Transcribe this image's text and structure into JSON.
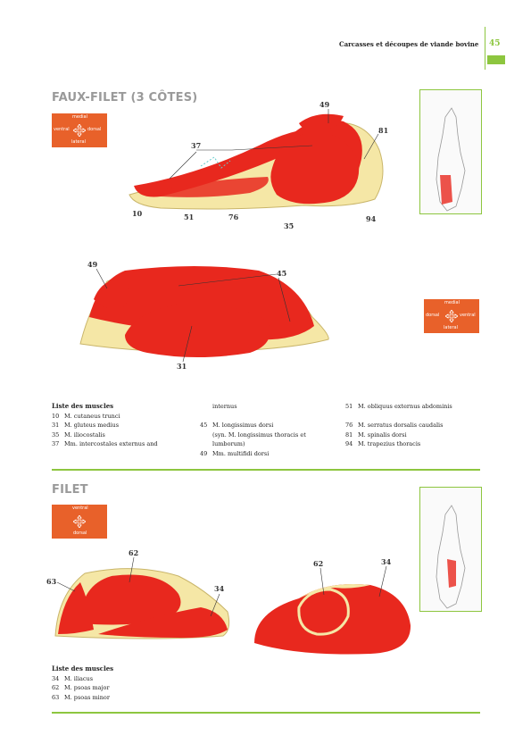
{
  "header": {
    "title": "Carcasses et découpes de viande bovine",
    "page_number": "45"
  },
  "sections": [
    {
      "title": "FAUX-FILET (3 CÔTES)",
      "orientation_a": {
        "top": "medial",
        "left": "ventral",
        "right": "dorsal",
        "bottom": "lateral"
      },
      "orientation_b": {
        "top": "medial",
        "left": "dorsal",
        "right": "ventral",
        "bottom": "lateral"
      },
      "diagram1_labels": [
        "49",
        "81",
        "37",
        "10",
        "51",
        "76",
        "35",
        "94"
      ],
      "diagram2_labels": [
        "49",
        "45",
        "31"
      ],
      "legend_heading": "Liste des muscles",
      "legend_col1": [
        {
          "num": "10",
          "text": "M. cutaneus trunci"
        },
        {
          "num": "31",
          "text": "M. gluteus medius"
        },
        {
          "num": "35",
          "text": "M. iliocostalis"
        },
        {
          "num": "37",
          "text": "Mm. intercostales externus and"
        }
      ],
      "legend_col2": [
        {
          "num": "",
          "text": "internus"
        },
        {
          "num": "",
          "text": ""
        },
        {
          "num": "45",
          "text": "M. longissimus dorsi"
        },
        {
          "num": "",
          "text": "(syn. M. longissimus thoracis et"
        },
        {
          "num": "",
          "text": "lumborum)"
        },
        {
          "num": "49",
          "text": "Mm. multifidi dorsi"
        }
      ],
      "legend_col3": [
        {
          "num": "51",
          "text": "M. obliquus externus abdominis"
        },
        {
          "num": "",
          "text": ""
        },
        {
          "num": "76",
          "text": "M. serratus dorsalis caudalis"
        },
        {
          "num": "81",
          "text": "M. spinalis dorsi"
        },
        {
          "num": "94",
          "text": "M. trapezius thoracis"
        }
      ]
    },
    {
      "title": "FILET",
      "orientation": {
        "top": "ventral",
        "bottom": "dorsal"
      },
      "diagram3_labels": [
        "62",
        "63",
        "34"
      ],
      "diagram4_labels": [
        "62",
        "34"
      ],
      "legend_heading": "Liste des muscles",
      "legend": [
        {
          "num": "34",
          "text": "M. iliacus"
        },
        {
          "num": "62",
          "text": "M. psoas major"
        },
        {
          "num": "63",
          "text": "M. psoas minor"
        }
      ]
    }
  ],
  "colors": {
    "accent_green": "#8dc63f",
    "orient_orange": "#e8612a",
    "muscle_red": "#e8281e",
    "fat_yellow": "#f5e7a6",
    "title_grey": "#9a9a9a"
  }
}
